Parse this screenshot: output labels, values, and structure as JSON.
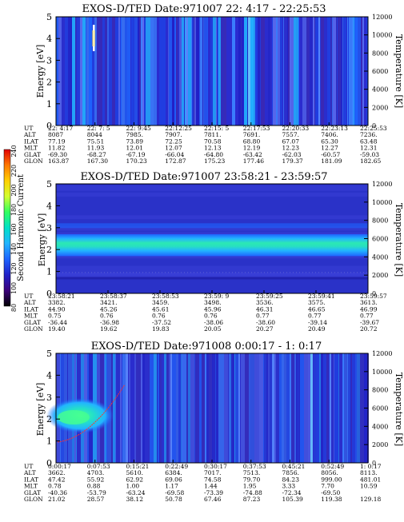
{
  "colorbar": {
    "label": "Second Harmonic Current",
    "ticks": [
      "80",
      "100",
      "120",
      "140",
      "160",
      "180",
      "200",
      "220",
      "240"
    ],
    "colors": [
      "#000000",
      "#3a007a",
      "#2020c8",
      "#1e64ff",
      "#22b4ff",
      "#00e0c8",
      "#30ff60",
      "#d2ff30",
      "#ffd000",
      "#ff7800",
      "#e10000"
    ]
  },
  "chart_data": [
    {
      "type": "heatmap",
      "title": "EXOS-D/TED   Date:971007  22: 4:17 - 22:25:53",
      "ylabel": "Energy [eV]",
      "y2label": "Temperature [K]",
      "ylim": [
        0,
        5
      ],
      "y2lim": [
        0,
        12000
      ],
      "yticks": [
        "0",
        "1",
        "2",
        "3",
        "4",
        "5"
      ],
      "y2ticks": [
        "0",
        "2000",
        "4000",
        "6000",
        "8000",
        "10000",
        "12000"
      ],
      "xticks": [
        "22: 4:17",
        "22: 7: 5",
        "22: 9:45",
        "22:12:25",
        "22:15: 5",
        "22:17:53",
        "22:20:33",
        "22:23:13",
        "22:25:53"
      ],
      "table": [
        {
          "label": "UT",
          "values": [
            "22: 4:17",
            "22: 7: 5",
            "22: 9:45",
            "22:12:25",
            "22:15: 5",
            "22:17:53",
            "22:20:33",
            "22:23:13",
            "22:25:53"
          ]
        },
        {
          "label": "ALT",
          "values": [
            "8087",
            "8044",
            "7985.",
            "7907.",
            "7811.",
            "7691.",
            "7557.",
            "7406.",
            "7236."
          ]
        },
        {
          "label": "ILAT",
          "values": [
            "77.19",
            "75.51",
            "73.89",
            "72.25",
            "70.58",
            "68.80",
            "67.07",
            "65.30",
            "63.48"
          ]
        },
        {
          "label": "MLT",
          "values": [
            "11.82",
            "11.93",
            "12.01",
            "12.07",
            "12.13",
            "12.19",
            "12.23",
            "12.27",
            "12.31"
          ]
        },
        {
          "label": "GLAT",
          "values": [
            "-69.30",
            "-68.27",
            "-67.19",
            "-66.04",
            "-64.80",
            "-63.42",
            "-62.03",
            "-60.57",
            "-59.03"
          ]
        },
        {
          "label": "GLON",
          "values": [
            "163.87",
            "167.30",
            "170.23",
            "172.87",
            "175.23",
            "177.46",
            "179.37",
            "181.09",
            "182.65"
          ]
        }
      ]
    },
    {
      "type": "heatmap",
      "title": "EXOS-D/TED   Date:971007  23:58:21 - 23:59:57",
      "ylabel": "Energy [eV]",
      "y2label": "Temperature [K]",
      "ylim": [
        0,
        5
      ],
      "y2lim": [
        0,
        12000
      ],
      "yticks": [
        "0",
        "1",
        "2",
        "3",
        "4",
        "5"
      ],
      "y2ticks": [
        "0",
        "2000",
        "4000",
        "6000",
        "8000",
        "10000",
        "12000"
      ],
      "xticks": [
        "23:58:21",
        "23:58:37",
        "23:58:53",
        "23:59: 9",
        "23:59:25",
        "23:59:41",
        "23:59:57"
      ],
      "table": [
        {
          "label": "UT",
          "values": [
            "23:58:21",
            "23:58:37",
            "23:58:53",
            "23:59: 9",
            "23:59:25",
            "23:59:41",
            "23:59:57"
          ]
        },
        {
          "label": "ALT",
          "values": [
            "3382.",
            "3421.",
            "3459.",
            "3498.",
            "3536.",
            "3575.",
            "3613."
          ]
        },
        {
          "label": "ILAT",
          "values": [
            "44.90",
            "45.26",
            "45.61",
            "45.96",
            "46.31",
            "46.65",
            "46.99"
          ]
        },
        {
          "label": "MLT",
          "values": [
            "0.75",
            "0.76",
            "0.76",
            "0.76",
            "0.77",
            "0.77",
            "0.77"
          ]
        },
        {
          "label": "GLAT",
          "values": [
            "-36.44",
            "-36.98",
            "-37.52",
            "-38.06",
            "-38.60",
            "-39.14",
            "-39.67"
          ]
        },
        {
          "label": "GLON",
          "values": [
            "19.40",
            "19.62",
            "19.83",
            "20.05",
            "20.27",
            "20.49",
            "20.72"
          ]
        }
      ]
    },
    {
      "type": "heatmap",
      "title": "EXOS-D/TED   Date:971008   0:00:17 -  1: 0:17",
      "ylabel": "Energy [eV]",
      "y2label": "Temperature [K]",
      "ylim": [
        0,
        5
      ],
      "y2lim": [
        0,
        12000
      ],
      "yticks": [
        "0",
        "1",
        "2",
        "3",
        "4",
        "5"
      ],
      "y2ticks": [
        "0",
        "2000",
        "4000",
        "6000",
        "8000",
        "10000",
        "12000"
      ],
      "xticks": [
        "0:00:17",
        "0:07:53",
        "0:15:21",
        "0:22:49",
        "0:30:17",
        "0:37:53",
        "0:45:21",
        "0:52:49",
        "1: 0:17"
      ],
      "table": [
        {
          "label": "UT",
          "values": [
            "0:00:17",
            "0:07:53",
            "0:15:21",
            "0:22:49",
            "0:30:17",
            "0:37:53",
            "0:45:21",
            "0:52:49",
            "1: 0:17"
          ]
        },
        {
          "label": "ALT",
          "values": [
            "3662.",
            "4703.",
            "5610.",
            "6384.",
            "7017.",
            "7513.",
            "7856.",
            "8056.",
            "8113."
          ]
        },
        {
          "label": "ILAT",
          "values": [
            "47.42",
            "55.92",
            "62.92",
            "69.06",
            "74.58",
            "79.70",
            "84.23",
            "999.00",
            "481.01"
          ]
        },
        {
          "label": "MLT",
          "values": [
            "0.78",
            "0.88",
            "1.00",
            "1.17",
            "1.44",
            "1.95",
            "3.33",
            "7.70",
            "10.59"
          ]
        },
        {
          "label": "GLAT",
          "values": [
            "-40.36",
            "-53.79",
            "-63.24",
            "-69.58",
            "-73.39",
            "-74.88",
            "-72.34",
            "-69.50",
            ""
          ]
        },
        {
          "label": "GLON",
          "values": [
            "21.02",
            "28.57",
            "38.12",
            "50.78",
            "67.46",
            "87.23",
            "105.39",
            "119.38",
            "129.18"
          ]
        }
      ]
    }
  ]
}
